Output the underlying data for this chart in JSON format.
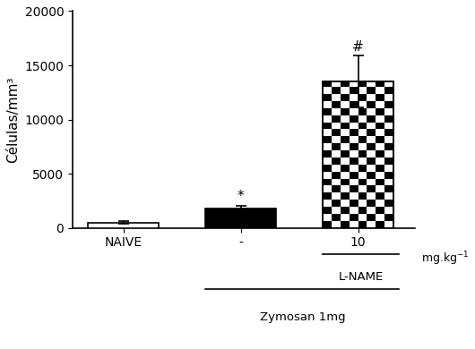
{
  "categories": [
    "NAIVE",
    "-",
    "10"
  ],
  "values": [
    500,
    1800,
    13500
  ],
  "errors": [
    100,
    280,
    2400
  ],
  "bar_colors": [
    "white",
    "black",
    "checker"
  ],
  "ylabel": "Células/mm³",
  "ylim": [
    0,
    20000
  ],
  "yticks": [
    0,
    5000,
    10000,
    15000,
    20000
  ],
  "mg_label": "mg.kg",
  "mg_super": "-1",
  "annotation_bar1": "*",
  "annotation_bar2": "#",
  "label_zymosan": "Zymosan 1mg",
  "label_lname": "L-NAME",
  "background_color": "#ffffff",
  "bar_width": 0.6,
  "bar_edge_color": "black",
  "bar_edge_width": 1.2,
  "checker_size": 8
}
